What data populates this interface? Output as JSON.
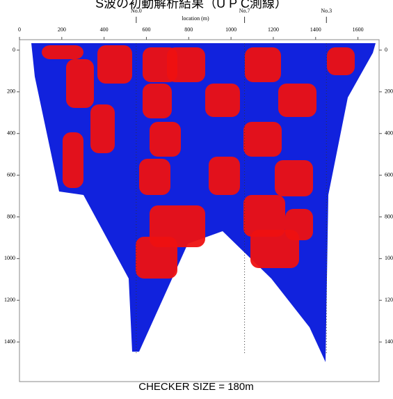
{
  "chart_data": {
    "type": "image",
    "title": "S波の初動解析結果（U P C測線）",
    "xlabel": "location (m)",
    "caption": "CHECKER SIZE = 180m",
    "xlim": [
      0,
      1700
    ],
    "xticks": [
      0,
      200,
      400,
      600,
      800,
      1000,
      1200,
      1400,
      1600
    ],
    "ylim": [
      -50,
      1590
    ],
    "yticks": [
      0,
      200,
      400,
      600,
      800,
      1000,
      1200,
      1400
    ],
    "wells": [
      {
        "label": "No.0",
        "x": 552
      },
      {
        "label": "No.7",
        "x": 1064
      },
      {
        "label": "No.3",
        "x": 1451
      }
    ],
    "colors": {
      "positive": "#ee1111",
      "negative": "#1122dd"
    }
  }
}
